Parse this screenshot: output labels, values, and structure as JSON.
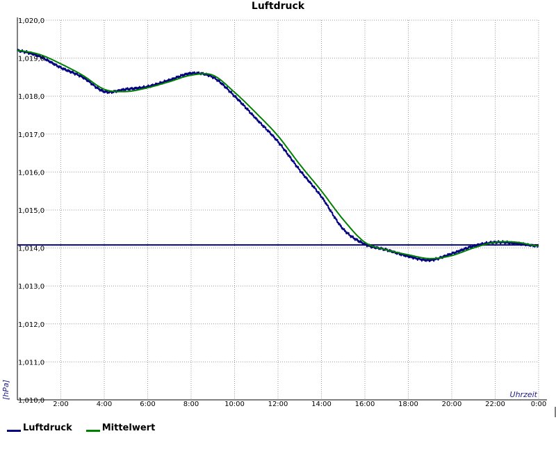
{
  "chart_data": {
    "type": "line",
    "title": "Luftdruck",
    "ylabel": "[hPa]",
    "xlabel": "Uhrzeit",
    "ylim": [
      1010.0,
      1020.0
    ],
    "xlim": [
      0,
      24
    ],
    "y_ticks": [
      "1,020,0",
      "1,019,0",
      "1,018,0",
      "1,017,0",
      "1,016,0",
      "1,015,0",
      "1,014,0",
      "1,013,0",
      "1,012,0",
      "1,011,0",
      "1,010,0"
    ],
    "x_ticks": [
      "2:00",
      "4:00",
      "6:00",
      "8:00",
      "10:00",
      "12:00",
      "14:00",
      "16:00",
      "18:00",
      "20:00",
      "22:00",
      "0:00"
    ],
    "grid": true,
    "legend_position": "bottom-left",
    "reference_line": {
      "y": 1014.08,
      "color": "#000066"
    },
    "x": [
      0,
      1,
      2,
      3,
      4,
      5,
      6,
      7,
      8,
      9,
      10,
      11,
      12,
      13,
      14,
      15,
      16,
      17,
      18,
      19,
      20,
      21,
      22,
      23,
      24
    ],
    "series": [
      {
        "name": "Luftdruck",
        "color": "#000080",
        "values": [
          1019.2,
          1019.05,
          1018.75,
          1018.5,
          1018.12,
          1018.18,
          1018.25,
          1018.42,
          1018.6,
          1018.5,
          1018.0,
          1017.4,
          1016.8,
          1016.05,
          1015.35,
          1014.5,
          1014.1,
          1013.95,
          1013.78,
          1013.68,
          1013.85,
          1014.05,
          1014.15,
          1014.12,
          1014.05
        ]
      },
      {
        "name": "Mittelwert",
        "color": "#008000",
        "values": [
          1019.2,
          1019.1,
          1018.85,
          1018.55,
          1018.18,
          1018.12,
          1018.22,
          1018.38,
          1018.55,
          1018.55,
          1018.1,
          1017.55,
          1016.95,
          1016.2,
          1015.5,
          1014.75,
          1014.15,
          1013.95,
          1013.82,
          1013.72,
          1013.8,
          1014.0,
          1014.15,
          1014.15,
          1014.05
        ]
      }
    ]
  }
}
